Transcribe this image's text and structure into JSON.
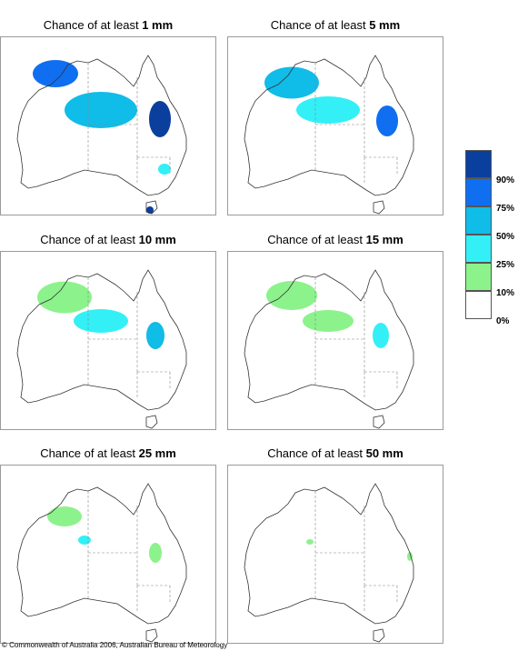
{
  "panels": [
    {
      "title_prefix": "Chance of at least",
      "threshold": "1 mm"
    },
    {
      "title_prefix": "Chance of at least",
      "threshold": "5 mm"
    },
    {
      "title_prefix": "Chance of at least",
      "threshold": "10 mm"
    },
    {
      "title_prefix": "Chance of at least",
      "threshold": "15 mm"
    },
    {
      "title_prefix": "Chance of at least",
      "threshold": "25 mm"
    },
    {
      "title_prefix": "Chance of at least",
      "threshold": "50 mm"
    }
  ],
  "legend": {
    "labels": [
      "90%",
      "75%",
      "50%",
      "25%",
      "10%",
      "0%"
    ],
    "colors": [
      "#0a3f9e",
      "#0f6ff0",
      "#10bce8",
      "#33f0f7",
      "#8cf28c",
      "#ffffff"
    ]
  },
  "footer": "© Commonwealth of Australia 2006, Australian Bureau of Meteorology"
}
